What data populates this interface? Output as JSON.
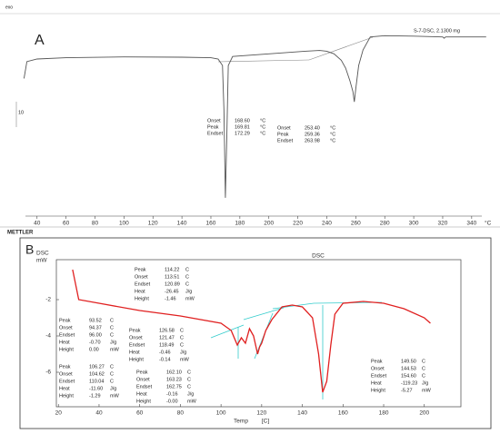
{
  "header": {
    "text": "exo"
  },
  "chart_data": [
    {
      "type": "line",
      "panel_label": "A",
      "sample_label": "S-7-DSC, 2.1300 mg",
      "scale_label": "10",
      "brand": "METTLER",
      "x": [
        31,
        33,
        40,
        60,
        100,
        140,
        160,
        165,
        168,
        169,
        170,
        171,
        172,
        175,
        200,
        225,
        235,
        240,
        245,
        250,
        253,
        256,
        258,
        259,
        260,
        262,
        265,
        268,
        270,
        280,
        300,
        320,
        321,
        322,
        340,
        350
      ],
      "series": [
        {
          "color": "#555555",
          "values": [
            -8,
            -1.5,
            -0.5,
            0,
            0.3,
            0.2,
            0,
            -0.5,
            -3,
            -20,
            -54,
            -30,
            -3,
            0.5,
            1.5,
            2.5,
            2.8,
            2.5,
            1.5,
            -1,
            -4,
            -9,
            -13,
            -17,
            -12,
            -3,
            3,
            6,
            8,
            8.5,
            8.3,
            8,
            7.5,
            8,
            8,
            8
          ]
        }
      ],
      "xlim": [
        32,
        347
      ],
      "xticks": [
        40,
        60,
        80,
        100,
        120,
        140,
        160,
        180,
        200,
        220,
        240,
        260,
        280,
        300,
        320,
        340
      ],
      "x_unit": "°C",
      "ylim": [
        -60,
        10
      ],
      "annotations": [
        {
          "rows": [
            [
              "Onset",
              "168.60",
              "°C"
            ],
            [
              "Peak",
              "169.81",
              "°C"
            ],
            [
              "Endset",
              "172.29",
              "°C"
            ]
          ]
        },
        {
          "rows": [
            [
              "Onset",
              "253.40",
              "°C"
            ],
            [
              "Peak",
              "259.36",
              "°C"
            ],
            [
              "Endset",
              "263.98",
              "°C"
            ]
          ]
        }
      ]
    },
    {
      "type": "line",
      "panel_label": "B",
      "title": "DSC",
      "ylabel": "DSC",
      "yunit": "mW",
      "xlabel": "Temp",
      "xunit": "[C]",
      "x": [
        27,
        30,
        40,
        60,
        80,
        100,
        105,
        108,
        110,
        112,
        114,
        116,
        118,
        119,
        120,
        122,
        125,
        130,
        135,
        140,
        145,
        148,
        150,
        152,
        154,
        156,
        160,
        170,
        180,
        190,
        200,
        203
      ],
      "series": [
        {
          "color": "#e02020",
          "values": [
            -0.35,
            -2,
            -2.2,
            -2.6,
            -2.9,
            -3.3,
            -3.7,
            -4.5,
            -4.1,
            -4.4,
            -3.6,
            -4.0,
            -5.0,
            -4.6,
            -4.4,
            -3.7,
            -3.1,
            -2.4,
            -2.3,
            -2.4,
            -3.0,
            -5.0,
            -7.1,
            -6.5,
            -4.5,
            -2.8,
            -2.2,
            -2.1,
            -2.2,
            -2.5,
            -3.0,
            -3.3
          ]
        }
      ],
      "xlim": [
        19,
        218
      ],
      "xticks": [
        20,
        40,
        60,
        80,
        100,
        120,
        140,
        160,
        180,
        200
      ],
      "ylim": [
        -7.9,
        0.2
      ],
      "yticks": [
        -2,
        -4,
        -6
      ],
      "annotations": [
        {
          "rows": [
            [
              "Peak",
              "114.22",
              "C"
            ],
            [
              "Onset",
              "113.51",
              "C"
            ],
            [
              "Endset",
              "120.89",
              "C"
            ],
            [
              "Heat",
              "-26.45",
              "J/g"
            ],
            [
              "Height",
              "-1.46",
              "mW"
            ]
          ]
        },
        {
          "rows": [
            [
              "Peak",
              "93.52",
              "C"
            ],
            [
              "Onset",
              "94.37",
              "C"
            ],
            [
              "Endset",
              "96.00",
              "C"
            ],
            [
              "Heat",
              "-0.70",
              "J/g"
            ],
            [
              "Height",
              "0.00",
              "mW"
            ]
          ]
        },
        {
          "rows": [
            [
              "Peak",
              "126.58",
              "C"
            ],
            [
              "Onset",
              "121.47",
              "C"
            ],
            [
              "Endset",
              "118.49",
              "C"
            ],
            [
              "Heat",
              "-0.46",
              "J/g"
            ],
            [
              "Height",
              "-0.14",
              "mW"
            ]
          ]
        },
        {
          "rows": [
            [
              "Peak",
              "106.27",
              "C"
            ],
            [
              "Onset",
              "104.62",
              "C"
            ],
            [
              "Endset",
              "110.04",
              "C"
            ],
            [
              "Heat",
              "-11.60",
              "J/g"
            ],
            [
              "Height",
              "-1.29",
              "mW"
            ]
          ]
        },
        {
          "rows": [
            [
              "Peak",
              "162.10",
              "C"
            ],
            [
              "Onset",
              "163.23",
              "C"
            ],
            [
              "Endset",
              "162.75",
              "C"
            ],
            [
              "Heat",
              "-0.16",
              "J/g"
            ],
            [
              "Height",
              "-0.00",
              "mW"
            ]
          ]
        },
        {
          "rows": [
            [
              "Peak",
              "149.50",
              "C"
            ],
            [
              "Onset",
              "144.53",
              "C"
            ],
            [
              "Endset",
              "154.60",
              "C"
            ],
            [
              "Heat",
              "-119.23",
              "J/g"
            ],
            [
              "Height",
              "-5.27",
              "mW"
            ]
          ]
        }
      ]
    }
  ]
}
